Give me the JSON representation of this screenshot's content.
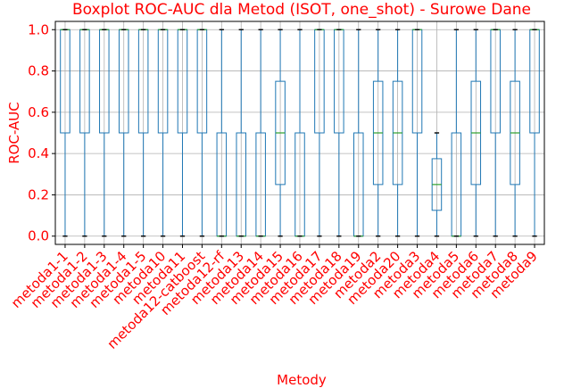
{
  "chart_data": {
    "type": "boxplot",
    "title": "Boxplot ROC-AUC dla Metod (ISOT, one_shot) - Surowe Dane",
    "xlabel": "Metody",
    "ylabel": "ROC-AUC",
    "ylim": [
      -0.04,
      1.04
    ],
    "yticks": [
      0.0,
      0.2,
      0.4,
      0.6,
      0.8,
      1.0
    ],
    "ytick_labels": [
      "0.0",
      "0.2",
      "0.4",
      "0.6",
      "0.8",
      "1.0"
    ],
    "grid": true,
    "colors": {
      "text": "#ff0000",
      "box": "#1f77b4",
      "median": "#2ca02c",
      "grid": "#b0b0b0",
      "axis": "#000000"
    },
    "categories": [
      "metoda1-1",
      "metoda1-2",
      "metoda1-3",
      "metoda1-4",
      "metoda1-5",
      "metoda10",
      "metoda11",
      "metoda12-catboost",
      "metoda12-rf",
      "metoda13",
      "metoda14",
      "metoda15",
      "metoda16",
      "metoda17",
      "metoda18",
      "metoda19",
      "metoda2",
      "metoda20",
      "metoda3",
      "metoda4",
      "metoda5",
      "metoda6",
      "metoda7",
      "metoda8",
      "metoda9"
    ],
    "boxes": [
      {
        "min": 0,
        "q1": 0.5,
        "median": 1.0,
        "q3": 1.0,
        "max": 1.0
      },
      {
        "min": 0,
        "q1": 0.5,
        "median": 1.0,
        "q3": 1.0,
        "max": 1.0
      },
      {
        "min": 0,
        "q1": 0.5,
        "median": 1.0,
        "q3": 1.0,
        "max": 1.0
      },
      {
        "min": 0,
        "q1": 0.5,
        "median": 1.0,
        "q3": 1.0,
        "max": 1.0
      },
      {
        "min": 0,
        "q1": 0.5,
        "median": 1.0,
        "q3": 1.0,
        "max": 1.0
      },
      {
        "min": 0,
        "q1": 0.5,
        "median": 1.0,
        "q3": 1.0,
        "max": 1.0
      },
      {
        "min": 0,
        "q1": 0.5,
        "median": 1.0,
        "q3": 1.0,
        "max": 1.0
      },
      {
        "min": 0,
        "q1": 0.5,
        "median": 1.0,
        "q3": 1.0,
        "max": 1.0
      },
      {
        "min": 0,
        "q1": 0.0,
        "median": 0.0,
        "q3": 0.5,
        "max": 1.0
      },
      {
        "min": 0,
        "q1": 0.0,
        "median": 0.0,
        "q3": 0.5,
        "max": 1.0
      },
      {
        "min": 0,
        "q1": 0.0,
        "median": 0.0,
        "q3": 0.5,
        "max": 1.0
      },
      {
        "min": 0,
        "q1": 0.25,
        "median": 0.5,
        "q3": 0.75,
        "max": 1.0
      },
      {
        "min": 0,
        "q1": 0.0,
        "median": 0.0,
        "q3": 0.5,
        "max": 1.0
      },
      {
        "min": 0,
        "q1": 0.5,
        "median": 1.0,
        "q3": 1.0,
        "max": 1.0
      },
      {
        "min": 0,
        "q1": 0.5,
        "median": 1.0,
        "q3": 1.0,
        "max": 1.0
      },
      {
        "min": 0,
        "q1": 0.0,
        "median": 0.0,
        "q3": 0.5,
        "max": 1.0
      },
      {
        "min": 0,
        "q1": 0.25,
        "median": 0.5,
        "q3": 0.75,
        "max": 1.0
      },
      {
        "min": 0,
        "q1": 0.25,
        "median": 0.5,
        "q3": 0.75,
        "max": 1.0
      },
      {
        "min": 0,
        "q1": 0.5,
        "median": 1.0,
        "q3": 1.0,
        "max": 1.0
      },
      {
        "min": 0,
        "q1": 0.125,
        "median": 0.25,
        "q3": 0.375,
        "max": 0.5
      },
      {
        "min": 0,
        "q1": 0.0,
        "median": 0.0,
        "q3": 0.5,
        "max": 1.0
      },
      {
        "min": 0,
        "q1": 0.25,
        "median": 0.5,
        "q3": 0.75,
        "max": 1.0
      },
      {
        "min": 0,
        "q1": 0.5,
        "median": 1.0,
        "q3": 1.0,
        "max": 1.0
      },
      {
        "min": 0,
        "q1": 0.25,
        "median": 0.5,
        "q3": 0.75,
        "max": 1.0
      },
      {
        "min": 0,
        "q1": 0.5,
        "median": 1.0,
        "q3": 1.0,
        "max": 1.0
      }
    ]
  }
}
